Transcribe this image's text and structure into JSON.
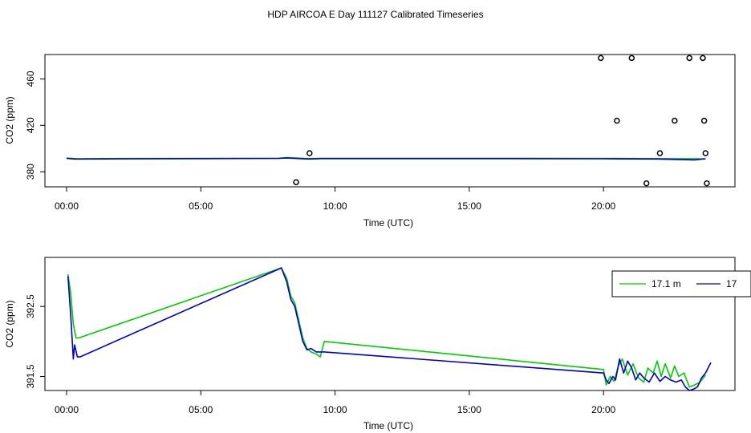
{
  "figure_title": "HDP AIRCOA E  Day 111127  Calibrated Timeseries",
  "chart_data": [
    {
      "type": "line+scatter",
      "xlabel": "Time (UTC)",
      "ylabel": "CO2 (ppm)",
      "xlim": [
        0,
        24
      ],
      "ylim": [
        367,
        481
      ],
      "x_ticks": [
        0,
        5,
        10,
        15,
        20
      ],
      "x_tick_labels": [
        "00:00",
        "05:00",
        "10:00",
        "15:00",
        "20:00"
      ],
      "y_ticks": [
        380,
        420,
        460
      ],
      "y_tick_labels": [
        "380",
        "420",
        "460"
      ],
      "colors": {
        "green": "#00cc00",
        "blue": "#0000cc"
      },
      "series": [
        {
          "color": "#00cc00",
          "x": [
            0.0,
            0.4,
            2.0,
            5.0,
            7.9,
            8.2,
            9.0,
            9.5,
            12.0,
            15.0,
            20.0,
            22.0,
            23.8
          ],
          "y": [
            391.8,
            391.2,
            391.4,
            391.5,
            391.6,
            392.3,
            391.3,
            391.6,
            391.6,
            391.6,
            391.5,
            391.3,
            391.2
          ]
        },
        {
          "color": "#0000cc",
          "x": [
            0.0,
            0.3,
            2.0,
            5.0,
            7.9,
            8.2,
            9.0,
            9.5,
            12.0,
            15.0,
            20.0,
            22.0,
            23.4,
            23.8
          ],
          "y": [
            391.5,
            391.0,
            391.1,
            391.3,
            391.5,
            391.8,
            391.0,
            391.3,
            391.3,
            391.3,
            391.2,
            391.0,
            390.2,
            391.2
          ]
        }
      ],
      "scatter": {
        "x": [
          8.55,
          9.05,
          19.9,
          20.5,
          21.05,
          21.6,
          22.1,
          22.65,
          23.2,
          23.7,
          23.75,
          23.8,
          23.85
        ],
        "y": [
          371,
          396,
          478,
          424,
          478,
          370,
          396,
          424,
          478,
          478,
          424,
          396,
          370
        ]
      }
    },
    {
      "type": "line",
      "xlabel": "Time (UTC)",
      "ylabel": "CO2 (ppm)",
      "xlim": [
        0,
        24
      ],
      "ylim": [
        391.3,
        393.2
      ],
      "x_ticks": [
        0,
        5,
        10,
        15,
        20
      ],
      "x_tick_labels": [
        "00:00",
        "05:00",
        "10:00",
        "15:00",
        "20:00"
      ],
      "y_ticks": [
        391.5,
        392.5
      ],
      "y_tick_labels": [
        "391.5",
        "392.5"
      ],
      "legend": {
        "position": "top-right",
        "entries": [
          "17.1 m",
          "17"
        ]
      },
      "series": [
        {
          "name": "17.1 m",
          "color": "#00cc00",
          "x": [
            0.05,
            0.15,
            0.25,
            0.35,
            0.45,
            8.0,
            8.2,
            8.35,
            8.5,
            8.65,
            8.8,
            8.95,
            9.1,
            9.3,
            9.45,
            9.6,
            20.0,
            20.1,
            20.25,
            20.4,
            20.55,
            20.7,
            20.9,
            21.1,
            21.3,
            21.5,
            21.65,
            21.85,
            22.0,
            22.15,
            22.3,
            22.5,
            22.65,
            22.8,
            23.0,
            23.2,
            23.4,
            23.6,
            23.8
          ],
          "y": [
            392.96,
            392.7,
            392.25,
            392.05,
            392.05,
            393.05,
            392.9,
            392.65,
            392.55,
            392.3,
            392.05,
            391.9,
            391.85,
            391.82,
            391.78,
            392.0,
            391.6,
            391.38,
            391.5,
            391.43,
            391.65,
            391.75,
            391.52,
            391.68,
            391.48,
            391.42,
            391.62,
            391.55,
            391.72,
            391.5,
            391.68,
            391.48,
            391.65,
            391.5,
            391.55,
            391.35,
            391.38,
            391.42,
            391.52
          ]
        },
        {
          "name": "17",
          "color": "#0000cc",
          "x": [
            0.05,
            0.15,
            0.25,
            0.3,
            0.4,
            0.5,
            8.0,
            8.2,
            8.35,
            8.5,
            8.65,
            8.8,
            8.95,
            9.1,
            9.3,
            9.45,
            9.6,
            20.0,
            20.1,
            20.2,
            20.35,
            20.45,
            20.6,
            20.75,
            20.9,
            21.05,
            21.2,
            21.35,
            21.5,
            21.7,
            21.9,
            22.1,
            22.3,
            22.5,
            22.7,
            22.9,
            23.05,
            23.2,
            23.35,
            23.5,
            23.65,
            23.8,
            24.0
          ],
          "y": [
            392.93,
            392.4,
            391.75,
            391.95,
            391.78,
            391.78,
            393.05,
            392.85,
            392.6,
            392.5,
            392.25,
            392.0,
            391.88,
            391.9,
            391.85,
            391.85,
            391.85,
            391.55,
            391.45,
            391.4,
            391.5,
            391.45,
            391.75,
            391.55,
            391.72,
            391.62,
            391.45,
            391.55,
            391.48,
            391.42,
            391.55,
            391.43,
            391.5,
            391.45,
            391.42,
            391.45,
            391.35,
            391.3,
            391.32,
            391.35,
            391.48,
            391.55,
            391.7
          ]
        }
      ]
    }
  ]
}
